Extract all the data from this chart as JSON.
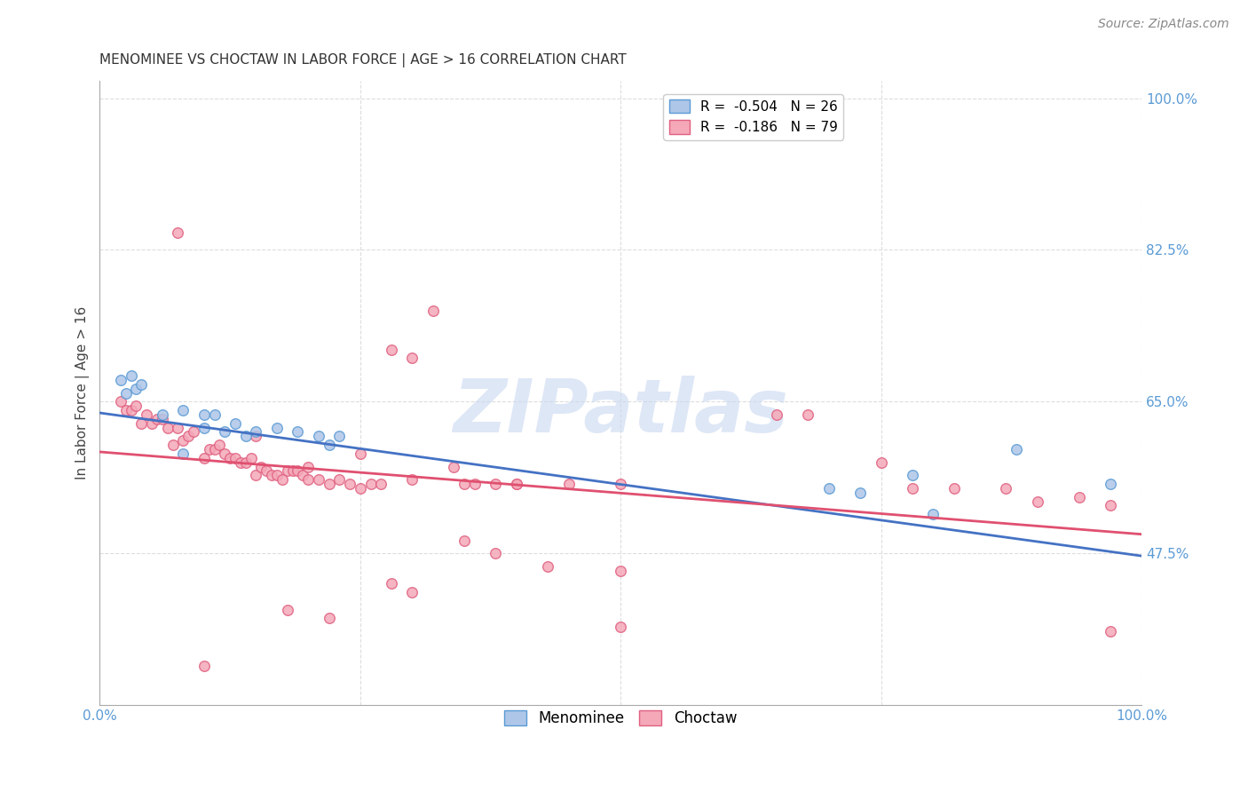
{
  "title": "MENOMINEE VS CHOCTAW IN LABOR FORCE | AGE > 16 CORRELATION CHART",
  "source": "Source: ZipAtlas.com",
  "ylabel": "In Labor Force | Age > 16",
  "right_yticks": [
    0.475,
    0.65,
    0.825,
    1.0
  ],
  "right_yticklabels": [
    "47.5%",
    "65.0%",
    "82.5%",
    "100.0%"
  ],
  "legend_entries": [
    {
      "label": "R =  -0.504   N = 26",
      "color": "#aec6e8",
      "edgecolor": "#5b9bd5"
    },
    {
      "label": "R =  -0.186   N = 79",
      "color": "#f4a8b8",
      "edgecolor": "#e06080"
    }
  ],
  "menominee_x": [
    0.02,
    0.025,
    0.03,
    0.035,
    0.04,
    0.06,
    0.08,
    0.1,
    0.11,
    0.13,
    0.15,
    0.17,
    0.19,
    0.21,
    0.23,
    0.1,
    0.12,
    0.14,
    0.08,
    0.22,
    0.7,
    0.73,
    0.78,
    0.8,
    0.88,
    0.97
  ],
  "menominee_y": [
    0.675,
    0.66,
    0.68,
    0.665,
    0.67,
    0.635,
    0.64,
    0.635,
    0.635,
    0.625,
    0.615,
    0.62,
    0.615,
    0.61,
    0.61,
    0.62,
    0.615,
    0.61,
    0.59,
    0.6,
    0.55,
    0.545,
    0.565,
    0.52,
    0.595,
    0.555
  ],
  "choctaw_x": [
    0.02,
    0.025,
    0.03,
    0.035,
    0.04,
    0.045,
    0.05,
    0.055,
    0.06,
    0.065,
    0.07,
    0.075,
    0.08,
    0.085,
    0.09,
    0.1,
    0.105,
    0.11,
    0.115,
    0.12,
    0.125,
    0.13,
    0.135,
    0.14,
    0.145,
    0.15,
    0.155,
    0.16,
    0.165,
    0.17,
    0.175,
    0.18,
    0.185,
    0.19,
    0.195,
    0.2,
    0.21,
    0.22,
    0.23,
    0.24,
    0.25,
    0.26,
    0.27,
    0.28,
    0.3,
    0.32,
    0.34,
    0.36,
    0.38,
    0.4,
    0.075,
    0.15,
    0.2,
    0.25,
    0.3,
    0.35,
    0.4,
    0.45,
    0.5,
    0.35,
    0.38,
    0.43,
    0.5,
    0.65,
    0.68,
    0.75,
    0.78,
    0.82,
    0.87,
    0.9,
    0.94,
    0.97,
    0.97,
    0.5,
    0.3,
    0.28,
    0.22,
    0.18,
    0.1
  ],
  "choctaw_y": [
    0.65,
    0.64,
    0.64,
    0.645,
    0.625,
    0.635,
    0.625,
    0.63,
    0.63,
    0.62,
    0.6,
    0.62,
    0.605,
    0.61,
    0.615,
    0.585,
    0.595,
    0.595,
    0.6,
    0.59,
    0.585,
    0.585,
    0.58,
    0.58,
    0.585,
    0.565,
    0.575,
    0.57,
    0.565,
    0.565,
    0.56,
    0.57,
    0.57,
    0.57,
    0.565,
    0.56,
    0.56,
    0.555,
    0.56,
    0.555,
    0.55,
    0.555,
    0.555,
    0.71,
    0.7,
    0.755,
    0.575,
    0.555,
    0.555,
    0.555,
    0.845,
    0.61,
    0.575,
    0.59,
    0.56,
    0.555,
    0.555,
    0.555,
    0.555,
    0.49,
    0.475,
    0.46,
    0.39,
    0.635,
    0.635,
    0.58,
    0.55,
    0.55,
    0.55,
    0.535,
    0.54,
    0.53,
    0.385,
    0.455,
    0.43,
    0.44,
    0.4,
    0.41,
    0.345
  ],
  "menominee_line_x": [
    0.0,
    1.0
  ],
  "menominee_line_y": [
    0.637,
    0.472
  ],
  "choctaw_line_x": [
    0.0,
    1.0
  ],
  "choctaw_line_y": [
    0.592,
    0.497
  ],
  "menominee_line_color": "#4472c4",
  "choctaw_line_color": "#e05070",
  "line_width": 2.0,
  "scatter_size": 70,
  "watermark_text": "ZIPatlas",
  "watermark_color": "#c8d8f0",
  "watermark_fontsize": 60,
  "background_color": "#ffffff",
  "grid_color": "#dddddd",
  "xlim": [
    0.0,
    1.0
  ],
  "ylim": [
    0.3,
    1.02
  ],
  "title_fontsize": 11,
  "axis_label_fontsize": 11,
  "tick_fontsize": 11
}
